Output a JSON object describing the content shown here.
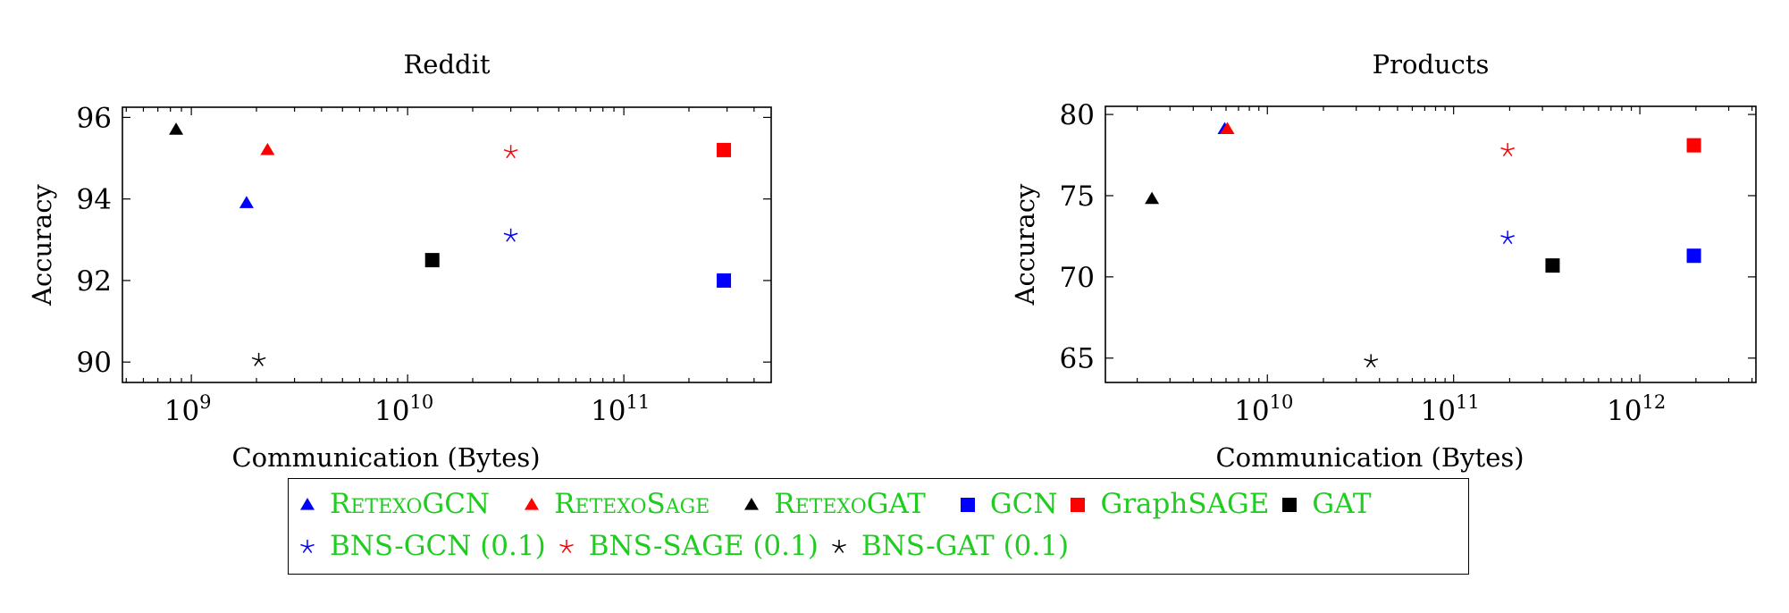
{
  "colors": {
    "blue": "#0000ff",
    "red": "#ff0000",
    "black": "#000000",
    "legend_text": "#1fcc1f"
  },
  "legend": {
    "entries": [
      {
        "label": "RetexoGCN",
        "marker": "triangle",
        "color": "#0000ff",
        "small_caps": true
      },
      {
        "label": "RetexoSage",
        "marker": "triangle",
        "color": "#ff0000",
        "small_caps": true
      },
      {
        "label": "RetexoGAT",
        "marker": "triangle",
        "color": "#000000",
        "small_caps": true
      },
      {
        "label": "GCN",
        "marker": "square",
        "color": "#0000ff",
        "small_caps": false
      },
      {
        "label": "GraphSAGE",
        "marker": "square",
        "color": "#ff0000",
        "small_caps": false
      },
      {
        "label": "GAT",
        "marker": "square",
        "color": "#000000",
        "small_caps": false
      },
      {
        "label": "BNS-GCN (0.1)",
        "marker": "star",
        "color": "#0000ff",
        "small_caps": false
      },
      {
        "label": "BNS-SAGE (0.1)",
        "marker": "star",
        "color": "#ff0000",
        "small_caps": false
      },
      {
        "label": "BNS-GAT (0.1)",
        "marker": "star",
        "color": "#000000",
        "small_caps": false
      }
    ]
  },
  "chart_data": [
    {
      "type": "scatter",
      "title": "Reddit",
      "xlabel": "Communication (Bytes)",
      "ylabel": "Accuracy",
      "xscale": "log",
      "xlim": [
        480000000.0,
        480000000000.0
      ],
      "ylim": [
        89.5,
        96.25
      ],
      "xticks": [
        1000000000.0,
        10000000000.0,
        100000000000.0
      ],
      "yticks": [
        90,
        92,
        94,
        96
      ],
      "grid": false,
      "series": [
        {
          "name": "RetexoGCN",
          "marker": "triangle",
          "color": "#0000ff",
          "points": [
            {
              "x": 1800000000.0,
              "y": 93.9
            }
          ]
        },
        {
          "name": "RetexoSage",
          "marker": "triangle",
          "color": "#ff0000",
          "points": [
            {
              "x": 2250000000.0,
              "y": 95.2
            }
          ]
        },
        {
          "name": "RetexoGAT",
          "marker": "triangle",
          "color": "#000000",
          "points": [
            {
              "x": 850000000.0,
              "y": 95.7
            }
          ]
        },
        {
          "name": "GCN",
          "marker": "square",
          "color": "#0000ff",
          "points": [
            {
              "x": 290000000000.0,
              "y": 92.0
            }
          ]
        },
        {
          "name": "GraphSAGE",
          "marker": "square",
          "color": "#ff0000",
          "points": [
            {
              "x": 290000000000.0,
              "y": 95.2
            }
          ]
        },
        {
          "name": "GAT",
          "marker": "square",
          "color": "#000000",
          "points": [
            {
              "x": 13000000000.0,
              "y": 92.5
            }
          ]
        },
        {
          "name": "BNS-GCN (0.1)",
          "marker": "star",
          "color": "#0000ff",
          "points": [
            {
              "x": 30000000000.0,
              "y": 93.1
            }
          ]
        },
        {
          "name": "BNS-SAGE (0.1)",
          "marker": "star",
          "color": "#ff0000",
          "points": [
            {
              "x": 30000000000.0,
              "y": 95.15
            }
          ]
        },
        {
          "name": "BNS-GAT (0.1)",
          "marker": "star",
          "color": "#000000",
          "points": [
            {
              "x": 2050000000.0,
              "y": 90.05
            }
          ]
        }
      ]
    },
    {
      "type": "scatter",
      "title": "Products",
      "xlabel": "Communication (Bytes)",
      "ylabel": "Accuracy",
      "xscale": "log",
      "xlim": [
        1350000000.0,
        4200000000000.0
      ],
      "ylim": [
        63.5,
        80.5
      ],
      "xticks": [
        10000000000.0,
        100000000000.0,
        1000000000000.0
      ],
      "yticks": [
        65,
        70,
        75,
        80
      ],
      "grid": false,
      "series": [
        {
          "name": "RetexoGCN",
          "marker": "triangle",
          "color": "#0000ff",
          "points": [
            {
              "x": 5900000000.0,
              "y": 79.1
            }
          ]
        },
        {
          "name": "RetexoSage",
          "marker": "triangle",
          "color": "#ff0000",
          "points": [
            {
              "x": 6100000000.0,
              "y": 79.1
            }
          ]
        },
        {
          "name": "RetexoGAT",
          "marker": "triangle",
          "color": "#000000",
          "points": [
            {
              "x": 2400000000.0,
              "y": 74.8
            }
          ]
        },
        {
          "name": "GCN",
          "marker": "square",
          "color": "#0000ff",
          "points": [
            {
              "x": 1950000000000.0,
              "y": 71.3
            }
          ]
        },
        {
          "name": "GraphSAGE",
          "marker": "square",
          "color": "#ff0000",
          "points": [
            {
              "x": 1950000000000.0,
              "y": 78.1
            }
          ]
        },
        {
          "name": "GAT",
          "marker": "square",
          "color": "#000000",
          "points": [
            {
              "x": 340000000000.0,
              "y": 70.7
            }
          ]
        },
        {
          "name": "BNS-GCN (0.1)",
          "marker": "star",
          "color": "#0000ff",
          "points": [
            {
              "x": 195000000000.0,
              "y": 72.4
            }
          ]
        },
        {
          "name": "BNS-SAGE (0.1)",
          "marker": "star",
          "color": "#ff0000",
          "points": [
            {
              "x": 195000000000.0,
              "y": 77.8
            }
          ]
        },
        {
          "name": "BNS-GAT (0.1)",
          "marker": "star",
          "color": "#000000",
          "points": [
            {
              "x": 36000000000.0,
              "y": 64.8
            }
          ]
        }
      ]
    }
  ]
}
